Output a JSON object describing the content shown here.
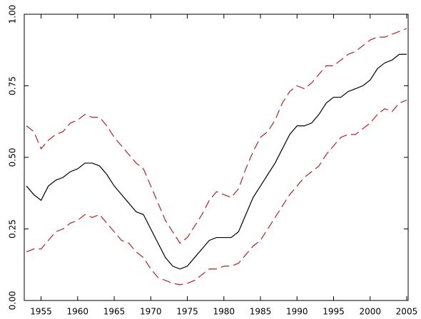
{
  "chart_data": {
    "type": "line",
    "x": [
      1953,
      1954,
      1955,
      1956,
      1957,
      1958,
      1959,
      1960,
      1961,
      1962,
      1963,
      1964,
      1965,
      1966,
      1967,
      1968,
      1969,
      1970,
      1971,
      1972,
      1973,
      1974,
      1975,
      1976,
      1977,
      1978,
      1979,
      1980,
      1981,
      1982,
      1983,
      1984,
      1985,
      1986,
      1987,
      1988,
      1989,
      1990,
      1991,
      1992,
      1993,
      1994,
      1995,
      1996,
      1997,
      1998,
      1999,
      2000,
      2001,
      2002,
      2003,
      2004,
      2005
    ],
    "series": [
      {
        "color": "#000000",
        "dashed": false,
        "values": [
          0.4,
          0.37,
          0.35,
          0.4,
          0.42,
          0.43,
          0.45,
          0.46,
          0.48,
          0.48,
          0.47,
          0.44,
          0.4,
          0.37,
          0.34,
          0.31,
          0.3,
          0.25,
          0.2,
          0.15,
          0.12,
          0.11,
          0.12,
          0.15,
          0.18,
          0.21,
          0.22,
          0.22,
          0.22,
          0.24,
          0.3,
          0.36,
          0.4,
          0.44,
          0.48,
          0.53,
          0.58,
          0.61,
          0.61,
          0.62,
          0.65,
          0.69,
          0.71,
          0.71,
          0.73,
          0.74,
          0.75,
          0.77,
          0.81,
          0.83,
          0.84,
          0.86,
          0.86
        ]
      },
      {
        "color": "#b22222",
        "dashed": true,
        "values": [
          0.61,
          0.59,
          0.53,
          0.56,
          0.58,
          0.59,
          0.62,
          0.63,
          0.65,
          0.64,
          0.64,
          0.61,
          0.57,
          0.54,
          0.51,
          0.48,
          0.46,
          0.4,
          0.34,
          0.28,
          0.24,
          0.2,
          0.22,
          0.26,
          0.3,
          0.35,
          0.38,
          0.37,
          0.36,
          0.39,
          0.46,
          0.52,
          0.57,
          0.59,
          0.63,
          0.69,
          0.73,
          0.75,
          0.74,
          0.76,
          0.79,
          0.82,
          0.82,
          0.84,
          0.86,
          0.87,
          0.89,
          0.91,
          0.92,
          0.92,
          0.93,
          0.94,
          0.95
        ]
      },
      {
        "color": "#b22222",
        "dashed": true,
        "values": [
          0.17,
          0.18,
          0.18,
          0.21,
          0.24,
          0.25,
          0.27,
          0.28,
          0.3,
          0.29,
          0.3,
          0.27,
          0.24,
          0.21,
          0.2,
          0.17,
          0.15,
          0.11,
          0.08,
          0.07,
          0.06,
          0.055,
          0.06,
          0.07,
          0.09,
          0.11,
          0.11,
          0.12,
          0.12,
          0.13,
          0.16,
          0.19,
          0.21,
          0.25,
          0.29,
          0.33,
          0.37,
          0.4,
          0.43,
          0.45,
          0.47,
          0.51,
          0.54,
          0.57,
          0.58,
          0.58,
          0.6,
          0.62,
          0.65,
          0.67,
          0.66,
          0.69,
          0.7
        ]
      }
    ],
    "xlim": [
      1952.7,
      2005.2
    ],
    "xticks": [
      1955,
      1960,
      1965,
      1970,
      1975,
      1980,
      1985,
      1990,
      1995,
      2000,
      2005
    ],
    "ylim": [
      0,
      1
    ],
    "yticks": [
      {
        "value": 0,
        "label": "0.00"
      },
      {
        "value": 0.25,
        "label": "0.25"
      },
      {
        "value": 0.5,
        "label": "0.50"
      },
      {
        "value": 0.75,
        "label": "0.75"
      },
      {
        "value": 1,
        "label": "1.00"
      }
    ],
    "grid": false
  }
}
